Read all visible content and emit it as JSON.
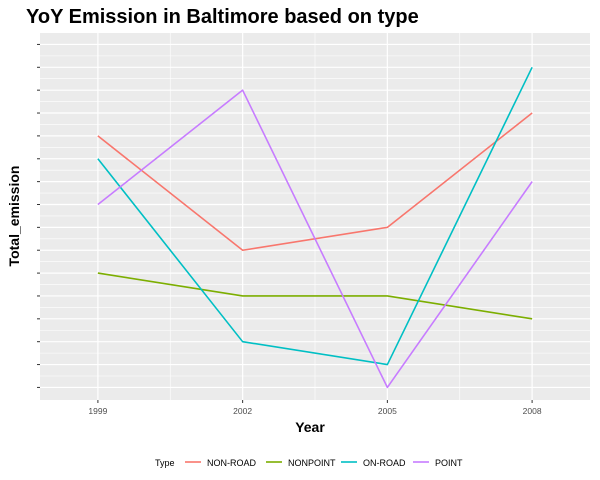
{
  "chart_data": {
    "type": "line",
    "title": "YoY Emission in Baltimore based on type",
    "xlabel": "Year",
    "ylabel": "Total_emission",
    "x": [
      1999,
      2002,
      2005,
      2008
    ],
    "x_tick_labels": [
      "1999",
      "2002",
      "2005",
      "2008"
    ],
    "xlim": [
      1997.8,
      2009.2
    ],
    "ylim": [
      -0.55,
      15.5
    ],
    "y_ticks": [
      0,
      1,
      2,
      3,
      4,
      5,
      6,
      7,
      8,
      9,
      10,
      11,
      12,
      13,
      14,
      15
    ],
    "y_tick_labels_shown": false,
    "grid": true,
    "legend": {
      "title": "Type",
      "position": "bottom"
    },
    "series": [
      {
        "name": "NON-ROAD",
        "color": "#F8766D",
        "values": [
          11,
          6,
          7,
          12
        ]
      },
      {
        "name": "NONPOINT",
        "color": "#7CAE00",
        "values": [
          5,
          4,
          4,
          3
        ]
      },
      {
        "name": "ON-ROAD",
        "color": "#00BFC4",
        "values": [
          10,
          2,
          1,
          14
        ]
      },
      {
        "name": "POINT",
        "color": "#C77CFF",
        "values": [
          8,
          13,
          0,
          9
        ]
      }
    ]
  }
}
